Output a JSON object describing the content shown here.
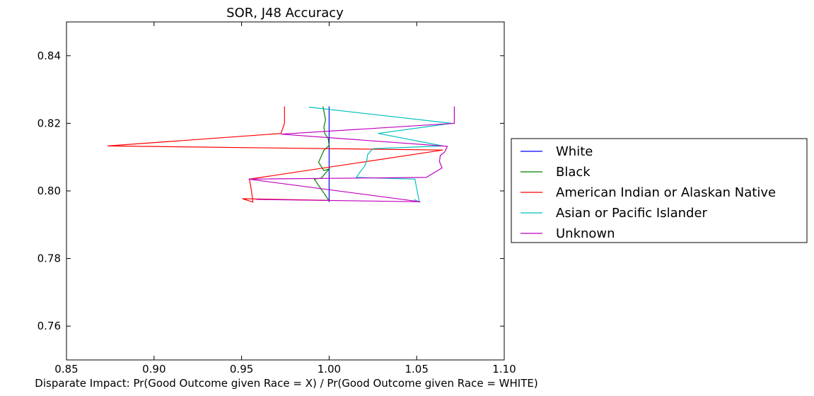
{
  "chart_data": {
    "type": "line",
    "title": "SOR, J48 Accuracy",
    "xlabel": "Disparate Impact: Pr(Good Outcome given Race = X) / Pr(Good Outcome given Race = WHITE)",
    "ylabel": "",
    "xlim": [
      0.85,
      1.1
    ],
    "ylim": [
      0.75,
      0.85
    ],
    "xticks": [
      0.85,
      0.9,
      0.95,
      1.0,
      1.05,
      1.1
    ],
    "xtick_labels": [
      "0.85",
      "0.90",
      "0.95",
      "1.00",
      "1.05",
      "1.10"
    ],
    "yticks": [
      0.76,
      0.78,
      0.8,
      0.82,
      0.84
    ],
    "ytick_labels": [
      "0.76",
      "0.78",
      "0.80",
      "0.82",
      "0.84"
    ],
    "grid": false,
    "legend_position": "outside-right",
    "series": [
      {
        "name": "White",
        "color": "#0000ff",
        "x": [
          1.0,
          1.0
        ],
        "y": [
          0.825,
          0.7967
        ]
      },
      {
        "name": "Black",
        "color": "#008000",
        "x": [
          0.9965,
          0.998,
          0.997,
          0.9975,
          0.9995,
          1.0,
          0.997,
          0.994,
          0.997,
          1.0,
          0.9955,
          0.9915,
          0.9975,
          1.0
        ],
        "y": [
          0.825,
          0.821,
          0.819,
          0.817,
          0.8155,
          0.8135,
          0.812,
          0.8085,
          0.806,
          0.8065,
          0.8038,
          0.8035,
          0.799,
          0.797
        ]
      },
      {
        "name": "American Indian or Alaskan Native",
        "color": "#ff0000",
        "x": [
          0.9745,
          0.9745,
          0.9725,
          0.8735,
          1.065,
          0.9545,
          0.9555,
          0.9565,
          0.9505,
          1.0
        ],
        "y": [
          0.825,
          0.82,
          0.817,
          0.8133,
          0.8121,
          0.8035,
          0.8005,
          0.7967,
          0.7977,
          0.7972
        ]
      },
      {
        "name": "Asian or Pacific Islander",
        "color": "#00bfbf",
        "x": [
          0.9885,
          1.07,
          1.028,
          1.065,
          1.025,
          1.022,
          1.0215,
          1.0205,
          1.0175,
          1.0155,
          1.049,
          1.0515,
          1.0485
        ],
        "y": [
          0.8248,
          0.82,
          0.817,
          0.8133,
          0.8125,
          0.8108,
          0.809,
          0.8075,
          0.8055,
          0.804,
          0.8035,
          0.7967,
          0.7975
        ]
      },
      {
        "name": "Unknown",
        "color": "#bf00bf",
        "x": [
          1.0715,
          1.0715,
          0.9725,
          1.0675,
          1.066,
          1.0635,
          1.063,
          1.0645,
          1.0555,
          0.954,
          1.052,
          0.9585
        ],
        "y": [
          0.825,
          0.82,
          0.8168,
          0.8132,
          0.8115,
          0.8105,
          0.8087,
          0.8068,
          0.804,
          0.8035,
          0.7968,
          0.7975
        ]
      }
    ]
  }
}
